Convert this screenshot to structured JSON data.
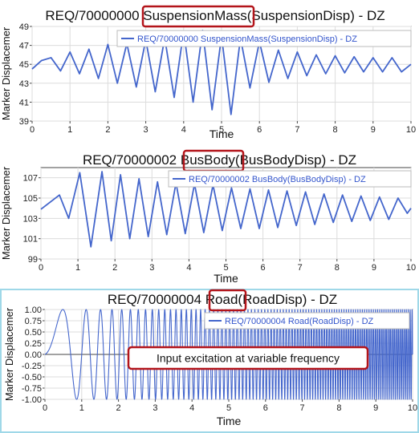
{
  "chart_data": [
    {
      "type": "line",
      "title_prefix": "REQ/70000000 ",
      "title_highlight": "SuspensionMass",
      "title_suffix": "(SuspensionDisp) - DZ",
      "xlabel": "Time",
      "ylabel": "Marker Displacemer",
      "xlim": [
        0,
        10
      ],
      "ylim": [
        39,
        49
      ],
      "xticks": [
        0,
        1,
        2,
        3,
        4,
        5,
        6,
        7,
        8,
        9,
        10
      ],
      "yticks": [
        39,
        41,
        43,
        45,
        47,
        49
      ],
      "legend": "REQ/70000000 SuspensionMass(SuspensionDisp) - DZ",
      "legend_position": "top-right",
      "grid": true,
      "series": [
        {
          "name": "REQ/70000000 SuspensionMass(SuspensionDisp) - DZ",
          "x": [
            0,
            0.25,
            0.5,
            0.75,
            1,
            1.25,
            1.5,
            1.75,
            2,
            2.25,
            2.5,
            2.75,
            3,
            3.25,
            3.5,
            3.75,
            4,
            4.25,
            4.5,
            4.75,
            5,
            5.25,
            5.5,
            5.75,
            6,
            6.25,
            6.5,
            6.75,
            7,
            7.25,
            7.5,
            7.75,
            8,
            8.25,
            8.5,
            8.75,
            9,
            9.25,
            9.5,
            9.75,
            10
          ],
          "y": [
            44.5,
            45.4,
            45.7,
            44.3,
            46.3,
            44.0,
            46.6,
            43.5,
            47.1,
            43.0,
            47.2,
            42.6,
            47.6,
            42.1,
            47.8,
            41.5,
            48.5,
            41.0,
            48.6,
            40.2,
            48.0,
            39.7,
            47.8,
            42.5,
            47.4,
            43.1,
            46.5,
            43.5,
            46.3,
            43.8,
            46.0,
            44.0,
            45.9,
            44.1,
            45.8,
            44.2,
            45.7,
            44.2,
            45.7,
            44.2,
            45.0
          ]
        }
      ]
    },
    {
      "type": "line",
      "title_prefix": "REQ/70000002 ",
      "title_highlight": "BusBody",
      "title_suffix": "(BusBodyDisp) - DZ",
      "xlabel": "Time",
      "ylabel": "Marker Displacemer",
      "xlim": [
        0,
        10
      ],
      "ylim": [
        99,
        108
      ],
      "xticks": [
        0,
        1,
        2,
        3,
        4,
        5,
        6,
        7,
        8,
        9,
        10
      ],
      "yticks": [
        99,
        101,
        103,
        105,
        107
      ],
      "legend": "REQ/70000002 BusBody(BusBodyDisp) - DZ",
      "legend_position": "top-right",
      "grid": true,
      "series": [
        {
          "name": "REQ/70000002 BusBody(BusBodyDisp) - DZ",
          "x": [
            0,
            0.5,
            0.75,
            1.05,
            1.35,
            1.65,
            1.9,
            2.15,
            2.4,
            2.65,
            2.9,
            3.15,
            3.4,
            3.65,
            3.9,
            4.15,
            4.4,
            4.65,
            4.9,
            5.15,
            5.4,
            5.65,
            5.9,
            6.15,
            6.4,
            6.65,
            6.9,
            7.15,
            7.4,
            7.65,
            7.9,
            8.15,
            8.4,
            8.65,
            8.9,
            9.15,
            9.4,
            9.65,
            9.9,
            10
          ],
          "y": [
            103.9,
            105.3,
            103.0,
            107.5,
            100.2,
            107.6,
            100.8,
            107.3,
            101.0,
            106.9,
            101.2,
            106.6,
            101.4,
            106.5,
            101.5,
            106.4,
            101.6,
            106.3,
            101.8,
            106.0,
            102.0,
            105.9,
            102.0,
            105.8,
            102.1,
            105.7,
            102.3,
            105.6,
            102.4,
            105.4,
            102.6,
            105.3,
            102.7,
            105.2,
            102.8,
            105.1,
            102.9,
            105.0,
            103.5,
            104.0
          ]
        }
      ]
    },
    {
      "type": "line",
      "title_prefix": "REQ/70000004 ",
      "title_highlight": "Road",
      "title_suffix": "(RoadDisp) - DZ",
      "xlabel": "Time",
      "ylabel": "Marker Displacemer",
      "xlim": [
        0,
        10
      ],
      "ylim": [
        -1.0,
        1.0
      ],
      "xticks": [
        0,
        1,
        2,
        3,
        4,
        5,
        6,
        7,
        8,
        9,
        10
      ],
      "yticks": [
        "-1.00",
        "-0.75",
        "-0.50",
        "-0.25",
        "0.00",
        "0.25",
        "0.50",
        "0.75",
        "1.00"
      ],
      "legend": "REQ/70000004 Road(RoadDisp) - DZ",
      "legend_position": "top-right",
      "grid": true,
      "annotation": "Input excitation at variable frequency",
      "series": [
        {
          "name": "REQ/70000004 Road(RoadDisp) - DZ",
          "function": "sin(2*pi*(0.05*t + 0.95*t^2))",
          "amplitude": 1.0,
          "x_range": [
            0,
            10
          ]
        }
      ]
    }
  ],
  "colors": {
    "line": "#4466cc",
    "highlight_box": "#b3141a",
    "grid": "#dcdcdc",
    "panel_border": "#9fd8e8"
  }
}
